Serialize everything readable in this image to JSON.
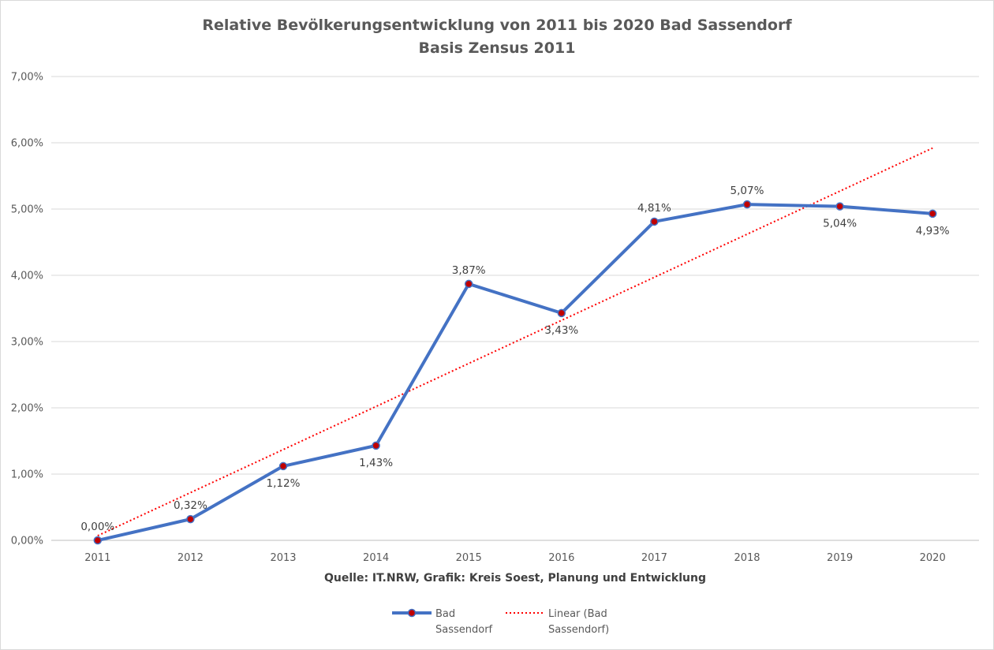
{
  "chart_data": {
    "type": "line",
    "title": "Relative Bevölkerungsentwicklung von 2011 bis 2020 Bad Sassendorf",
    "subtitle": "Basis Zensus 2011",
    "xlabel": "Quelle: IT.NRW, Grafik: Kreis Soest, Planung und Entwicklung",
    "ylabel": "",
    "categories": [
      "2011",
      "2012",
      "2013",
      "2014",
      "2015",
      "2016",
      "2017",
      "2018",
      "2019",
      "2020"
    ],
    "ylim": [
      0,
      7
    ],
    "yticks": [
      0,
      1,
      2,
      3,
      4,
      5,
      6,
      7
    ],
    "ytick_labels": [
      "0,00%",
      "1,00%",
      "2,00%",
      "3,00%",
      "4,00%",
      "5,00%",
      "6,00%",
      "7,00%"
    ],
    "grid": true,
    "legend_position": "bottom",
    "series": [
      {
        "name": "Bad Sassendorf",
        "values": [
          0.0,
          0.32,
          1.12,
          1.43,
          3.87,
          3.43,
          4.81,
          5.07,
          5.04,
          4.93
        ],
        "data_labels": [
          "0,00%",
          "0,32%",
          "1,12%",
          "1,43%",
          "3,87%",
          "3,43%",
          "4,81%",
          "5,07%",
          "5,04%",
          "4,93%"
        ],
        "label_positions": [
          "above",
          "above",
          "below",
          "below",
          "above",
          "below",
          "above",
          "above",
          "below",
          "below"
        ],
        "color": "#4472c4",
        "marker_color": "#c00000"
      }
    ],
    "trendline": {
      "name": "Linear (Bad Sassendorf)",
      "type": "linear",
      "start": [
        1,
        0.07
      ],
      "end": [
        10,
        5.92
      ],
      "color": "#ff0000"
    },
    "legend": [
      {
        "name": "Bad Sassendorf",
        "lines": [
          "Bad",
          "Sassendorf"
        ]
      },
      {
        "name": "Linear (Bad Sassendorf)",
        "lines": [
          "Linear (Bad",
          "Sassendorf)"
        ]
      }
    ]
  }
}
